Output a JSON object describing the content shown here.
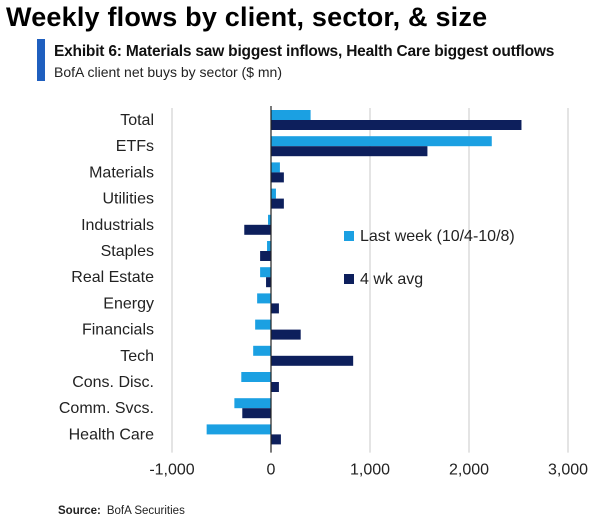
{
  "header": {
    "title": "Weekly flows by client, sector, & size",
    "subtitle": "Exhibit 6: Materials saw biggest inflows, Health Care biggest outflows",
    "unit": "BofA client net buys by sector ($ mn)"
  },
  "footer": {
    "source_label": "Source:",
    "source_value": "BofA Securities"
  },
  "colors": {
    "last_week": "#1ba0e2",
    "four_wk_avg": "#0d1f5c",
    "grid": "#c8c8c8",
    "axis": "#222222",
    "accent": "#1f5fbf"
  },
  "chart_data": {
    "type": "bar",
    "orientation": "horizontal",
    "title": "Weekly flows by client, sector, & size",
    "subtitle": "Exhibit 6: Materials saw biggest inflows, Health Care biggest outflows",
    "xlabel": "",
    "ylabel": "",
    "xlim": [
      -1000,
      3000
    ],
    "xticks": [
      -1000,
      0,
      1000,
      2000,
      3000
    ],
    "xtick_labels": [
      "-1,000",
      "0",
      "1,000",
      "2,000",
      "3,000"
    ],
    "grid": true,
    "legend_position": "center-right",
    "categories": [
      "Total",
      "ETFs",
      "Materials",
      "Utilities",
      "Industrials",
      "Staples",
      "Real Estate",
      "Energy",
      "Financials",
      "Tech",
      "Cons. Disc.",
      "Comm. Svcs.",
      "Health Care"
    ],
    "series": [
      {
        "name": "Last week (10/4-10/8)",
        "color": "#1ba0e2",
        "values": [
          400,
          2230,
          90,
          50,
          -30,
          -40,
          -110,
          -140,
          -160,
          -180,
          -300,
          -370,
          -650
        ]
      },
      {
        "name": "4 wk avg",
        "color": "#0d1f5c",
        "values": [
          2530,
          1580,
          130,
          130,
          -270,
          -110,
          -50,
          80,
          300,
          830,
          80,
          -290,
          100
        ]
      }
    ]
  }
}
